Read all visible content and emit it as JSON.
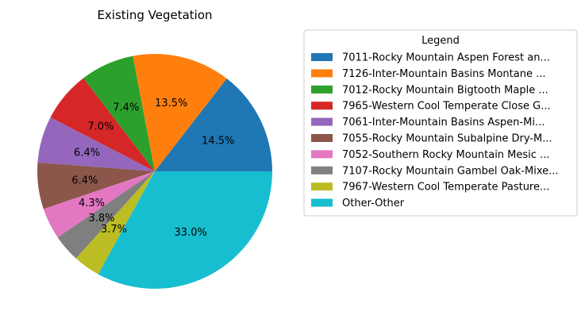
{
  "chart_data": {
    "type": "pie",
    "title": "Existing Vegetation",
    "legend_title": "Legend",
    "legend_position": "right",
    "slices": [
      {
        "label": "7011-Rocky Mountain Aspen Forest an...",
        "value": 14.5,
        "pct_label": "14.5%",
        "color": "#1f77b4"
      },
      {
        "label": "7126-Inter-Mountain Basins Montane ...",
        "value": 13.5,
        "pct_label": "13.5%",
        "color": "#ff7f0e"
      },
      {
        "label": "7012-Rocky Mountain Bigtooth Maple ...",
        "value": 7.4,
        "pct_label": "7.4%",
        "color": "#2ca02c"
      },
      {
        "label": "7965-Western Cool Temperate Close G...",
        "value": 7.0,
        "pct_label": "7.0%",
        "color": "#d62728"
      },
      {
        "label": "7061-Inter-Mountain Basins Aspen-Mi...",
        "value": 6.4,
        "pct_label": "6.4%",
        "color": "#9467bd"
      },
      {
        "label": "7055-Rocky Mountain Subalpine Dry-M...",
        "value": 6.4,
        "pct_label": "6.4%",
        "color": "#8c564b"
      },
      {
        "label": "7052-Southern Rocky Mountain Mesic ...",
        "value": 4.3,
        "pct_label": "4.3%",
        "color": "#e377c2"
      },
      {
        "label": "7107-Rocky Mountain Gambel Oak-Mixe...",
        "value": 3.8,
        "pct_label": "3.8%",
        "color": "#7f7f7f"
      },
      {
        "label": "7967-Western Cool Temperate Pasture...",
        "value": 3.7,
        "pct_label": "3.7%",
        "color": "#bcbd22"
      },
      {
        "label": "Other-Other",
        "value": 33.0,
        "pct_label": "33.0%",
        "color": "#17becf"
      }
    ]
  }
}
